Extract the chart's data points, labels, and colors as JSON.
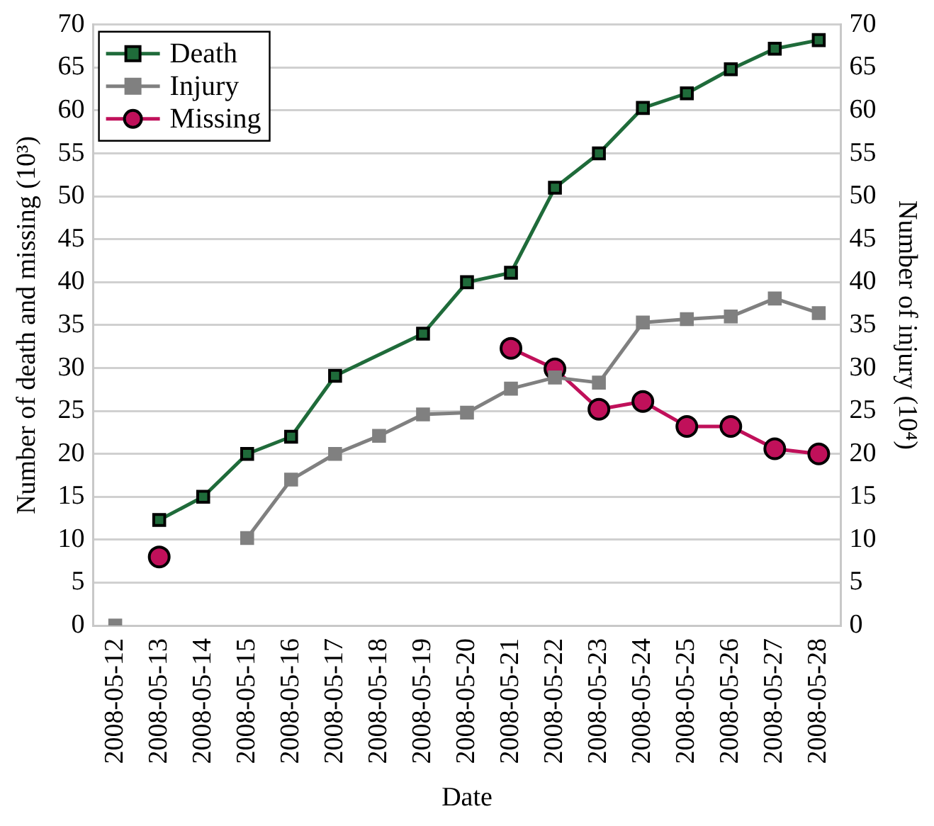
{
  "chart_data": {
    "type": "line",
    "xlabel": "Date",
    "ylabel": "Number of death and missing (10³)",
    "y2label": "Number of injury (10⁴)",
    "categories": [
      "2008-05-12",
      "2008-05-13",
      "2008-05-14",
      "2008-05-15",
      "2008-05-16",
      "2008-05-17",
      "2008-05-18",
      "2008-05-19",
      "2008-05-20",
      "2008-05-21",
      "2008-05-22",
      "2008-05-23",
      "2008-05-24",
      "2008-05-25",
      "2008-05-26",
      "2008-05-27",
      "2008-05-28"
    ],
    "series": [
      {
        "name": "Death",
        "color": "#1f6b3a",
        "marker": "square",
        "values": [
          null,
          12.3,
          15,
          20,
          22,
          29.1,
          null,
          34,
          40,
          41.1,
          51,
          55,
          60.3,
          62,
          64.8,
          67.2,
          68.2
        ]
      },
      {
        "name": "Injury",
        "color": "#808080",
        "marker": "square",
        "axis": "y2",
        "values": [
          0,
          null,
          null,
          10.2,
          17,
          20,
          22.1,
          24.6,
          24.8,
          27.6,
          28.9,
          28.3,
          35.3,
          35.7,
          36,
          38.1,
          36.4
        ]
      },
      {
        "name": "Missing",
        "color": "#c0105a",
        "marker": "circle",
        "values": [
          null,
          8,
          null,
          null,
          null,
          null,
          null,
          null,
          null,
          32.3,
          29.9,
          25.2,
          26.1,
          23.2,
          23.2,
          20.6,
          20
        ]
      }
    ],
    "ylim": [
      0,
      70
    ],
    "yticks": [
      0,
      5,
      10,
      15,
      20,
      25,
      30,
      35,
      40,
      45,
      50,
      55,
      60,
      65,
      70
    ],
    "y2lim": [
      0,
      70
    ],
    "y2ticks": [
      0,
      5,
      10,
      15,
      20,
      25,
      30,
      35,
      40,
      45,
      50,
      55,
      60,
      65,
      70
    ],
    "grid": "y",
    "legend": "top left"
  }
}
